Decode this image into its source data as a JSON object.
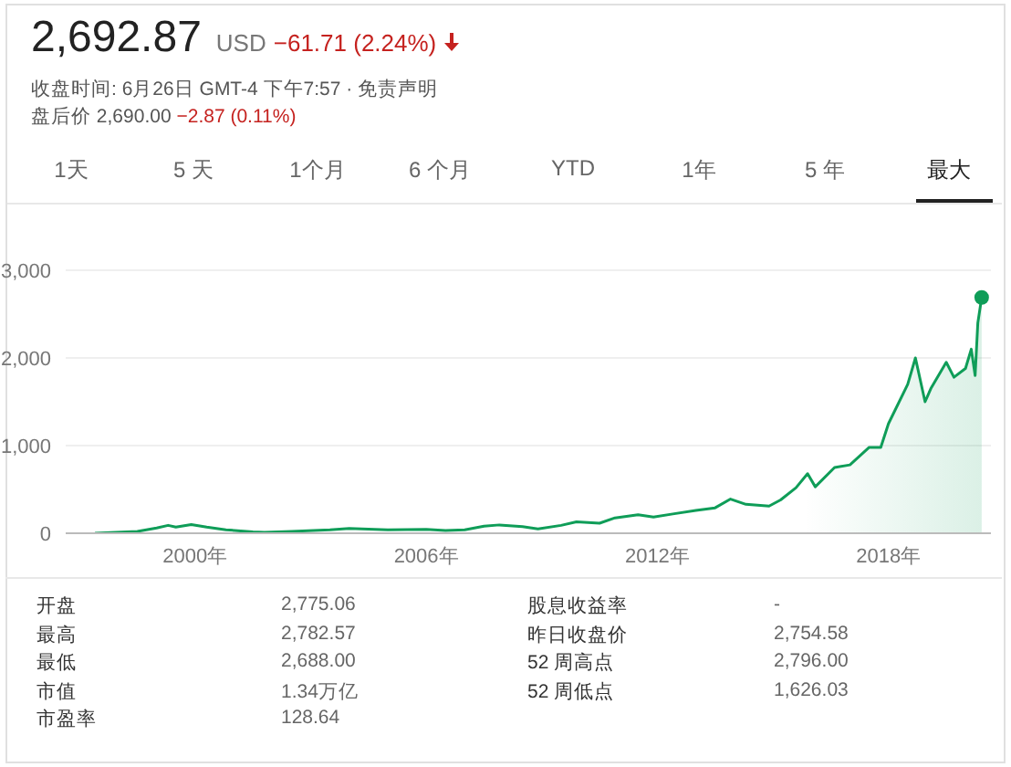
{
  "chart_data": {
    "type": "area",
    "title": "2,692.87",
    "annotations": [
      "USD",
      "−61.71 (2.24%)",
      "收盘时间: 6月26日 GMT-4 下午7:57 · 免责声明",
      "盘后价 2,690.00",
      "−2.87 (0.11%)",
      "1天",
      "5 天",
      "1个月",
      "6 个月",
      "YTD",
      "1年",
      "5 年",
      "最大",
      "开盘",
      "2,775.06",
      "最高",
      "2,782.57",
      "最低",
      "2,688.00",
      "市值",
      "1.34万亿",
      "市盈率",
      "128.64",
      "股息收益率",
      "-",
      "昨日收盘价",
      "2,754.58",
      "52 周高点",
      "2,796.00",
      "52 周低点",
      "1,626.03"
    ],
    "x": [
      1997.4,
      1998.5,
      1999.0,
      1999.3,
      1999.5,
      1999.9,
      2000.3,
      2000.8,
      2001.5,
      2001.8,
      2002.5,
      2003.5,
      2004.0,
      2005.0,
      2006.0,
      2006.5,
      2007.0,
      2007.5,
      2007.9,
      2008.5,
      2008.9,
      2009.5,
      2009.9,
      2010.5,
      2010.9,
      2011.5,
      2011.9,
      2012.4,
      2013.0,
      2013.5,
      2013.9,
      2014.3,
      2014.9,
      2015.2,
      2015.6,
      2015.9,
      2016.1,
      2016.6,
      2017.0,
      2017.5,
      2017.8,
      2018.0,
      2018.5,
      2018.7,
      2018.95,
      2019.1,
      2019.5,
      2019.7,
      2020.0,
      2020.15,
      2020.25,
      2020.32,
      2020.42
    ],
    "series": [
      {
        "color": "#0f9d58",
        "values": [
          0,
          20,
          60,
          90,
          70,
          100,
          70,
          40,
          15,
          10,
          20,
          40,
          55,
          40,
          45,
          30,
          40,
          80,
          95,
          75,
          50,
          90,
          130,
          115,
          175,
          210,
          185,
          220,
          260,
          290,
          390,
          330,
          310,
          380,
          520,
          680,
          530,
          750,
          780,
          980,
          980,
          1250,
          1700,
          2000,
          1500,
          1650,
          1950,
          1780,
          1880,
          2100,
          1800,
          2400,
          2690
        ]
      },
      {
        "type": "scatter",
        "marker": "circle",
        "color": "#0f9d58",
        "x": [
          2020.42
        ],
        "values": [
          2690
        ]
      }
    ],
    "xlim": [
      1996.64,
      2020.66
    ],
    "xticks": [
      {
        "value": 2000,
        "label": "2000年"
      },
      {
        "value": 2006,
        "label": "2006年"
      },
      {
        "value": 2012,
        "label": "2012年"
      },
      {
        "value": 2018,
        "label": "2018年"
      }
    ],
    "ylim": [
      0,
      3000
    ],
    "yticks": [
      {
        "value": 0,
        "label": "0"
      },
      {
        "value": 1000,
        "label": "1,000"
      },
      {
        "value": 2000,
        "label": "2,000"
      },
      {
        "value": 3000,
        "label": "3,000"
      }
    ],
    "grid": "y",
    "legend": false,
    "marker": "none"
  }
}
